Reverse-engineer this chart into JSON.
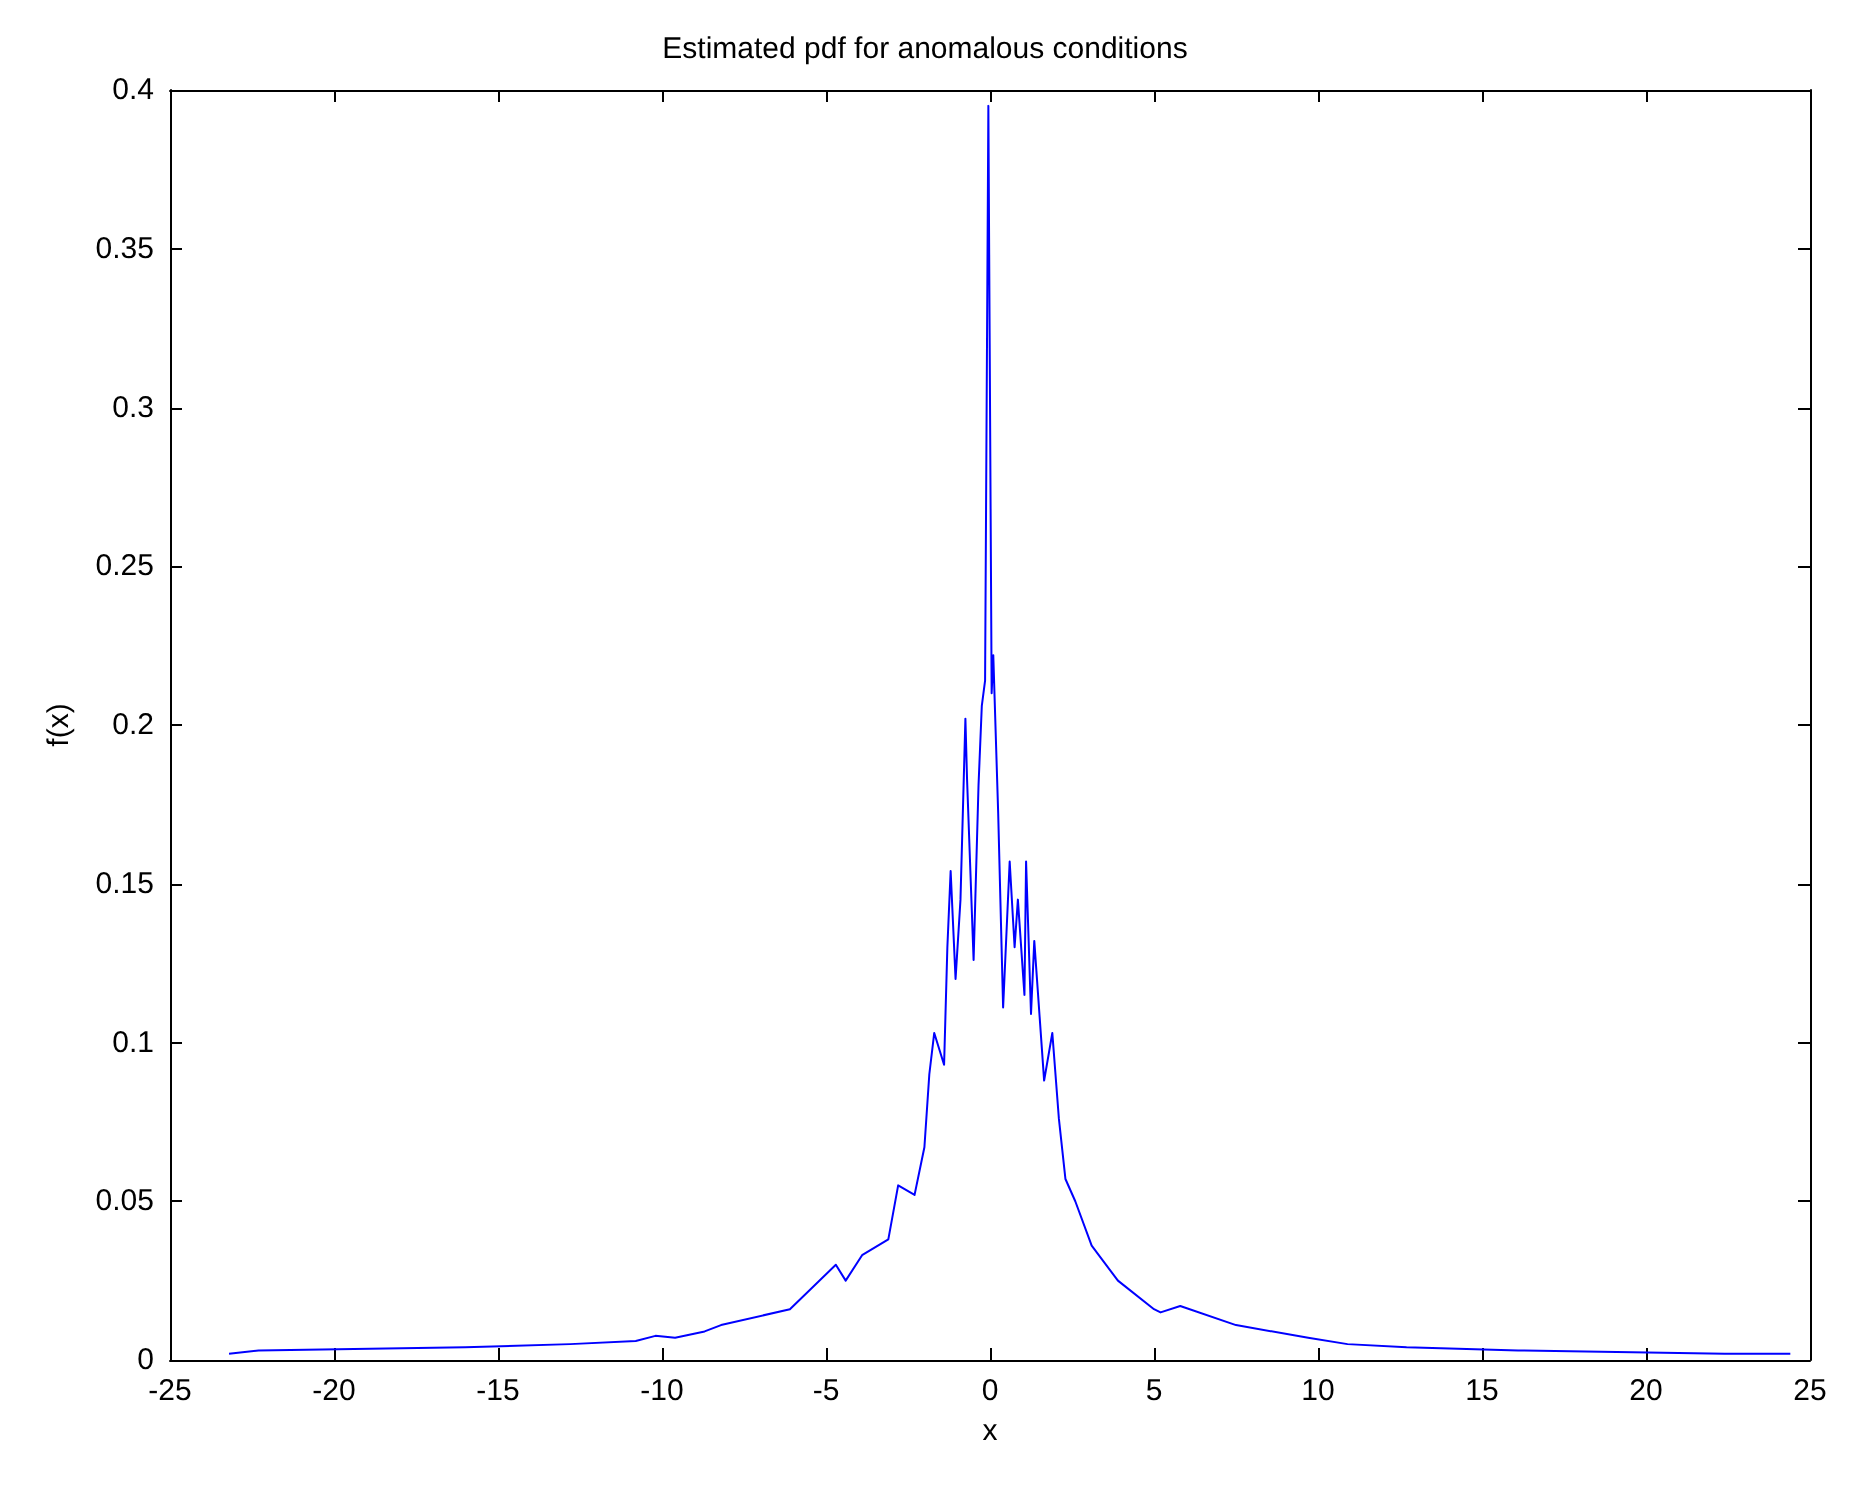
{
  "chart_data": {
    "type": "line",
    "title": "Estimated pdf for anomalous conditions",
    "xlabel": "x",
    "ylabel": "f(x)",
    "xlim": [
      -25,
      25
    ],
    "xticks": [
      -25,
      -20,
      -15,
      -10,
      -5,
      0,
      5,
      10,
      15,
      20,
      25
    ],
    "ylim": [
      0,
      0.4
    ],
    "yticks": [
      0,
      0.05,
      0.1,
      0.15,
      0.2,
      0.25,
      0.3,
      0.35,
      0.4
    ],
    "grid": false,
    "marker": "none",
    "line_style": "solid",
    "series": [
      {
        "color": "#0000ff",
        "x": [
          -23.2,
          -22.3,
          -16,
          -12.8,
          -10.8,
          -10.2,
          -9.6,
          -8.7,
          -8.2,
          -6.1,
          -4.7,
          -4.4,
          -3.9,
          -3.1,
          -2.8,
          -2.3,
          -2.0,
          -1.85,
          -1.7,
          -1.4,
          -1.3,
          -1.2,
          -1.05,
          -0.9,
          -0.75,
          -0.7,
          -0.5,
          -0.35,
          -0.25,
          -0.15,
          -0.05,
          0.05,
          0.1,
          0.25,
          0.4,
          0.6,
          0.75,
          0.85,
          1.05,
          1.1,
          1.25,
          1.35,
          1.65,
          1.9,
          2.1,
          2.3,
          2.6,
          3.1,
          3.9,
          5.0,
          5.2,
          5.8,
          7.5,
          9.7,
          10.9,
          12.7,
          16.1,
          22.4,
          24.4
        ],
        "values": [
          0.002,
          0.003,
          0.004,
          0.005,
          0.006,
          0.0076,
          0.007,
          0.009,
          0.011,
          0.016,
          0.03,
          0.025,
          0.033,
          0.038,
          0.055,
          0.052,
          0.067,
          0.09,
          0.103,
          0.093,
          0.13,
          0.154,
          0.12,
          0.145,
          0.202,
          0.183,
          0.126,
          0.181,
          0.206,
          0.214,
          0.395,
          0.21,
          0.222,
          0.172,
          0.111,
          0.157,
          0.13,
          0.145,
          0.115,
          0.157,
          0.109,
          0.132,
          0.088,
          0.103,
          0.076,
          0.057,
          0.05,
          0.036,
          0.025,
          0.016,
          0.015,
          0.017,
          0.011,
          0.007,
          0.005,
          0.004,
          0.003,
          0.002,
          0.002
        ]
      }
    ]
  }
}
